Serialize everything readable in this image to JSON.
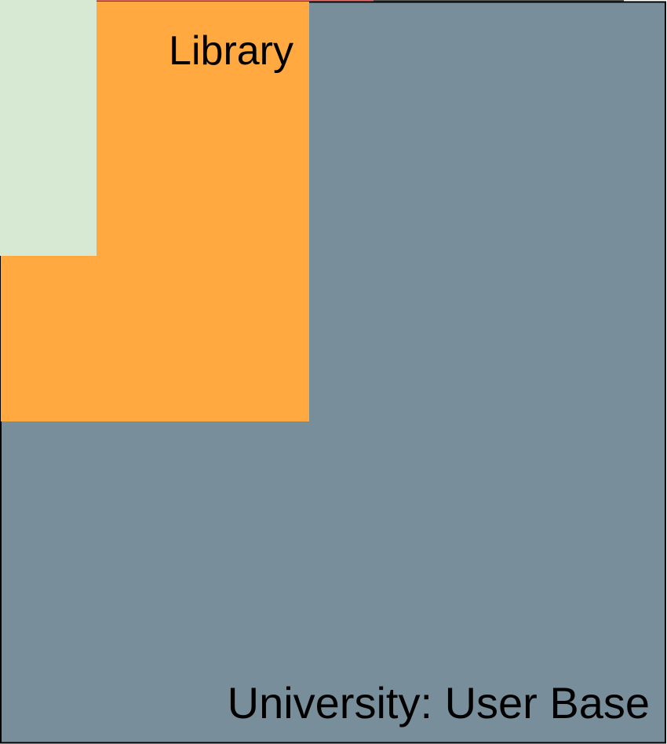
{
  "regions": [
    {
      "label": "University: User Base"
    },
    {
      "label": "Library"
    }
  ]
}
